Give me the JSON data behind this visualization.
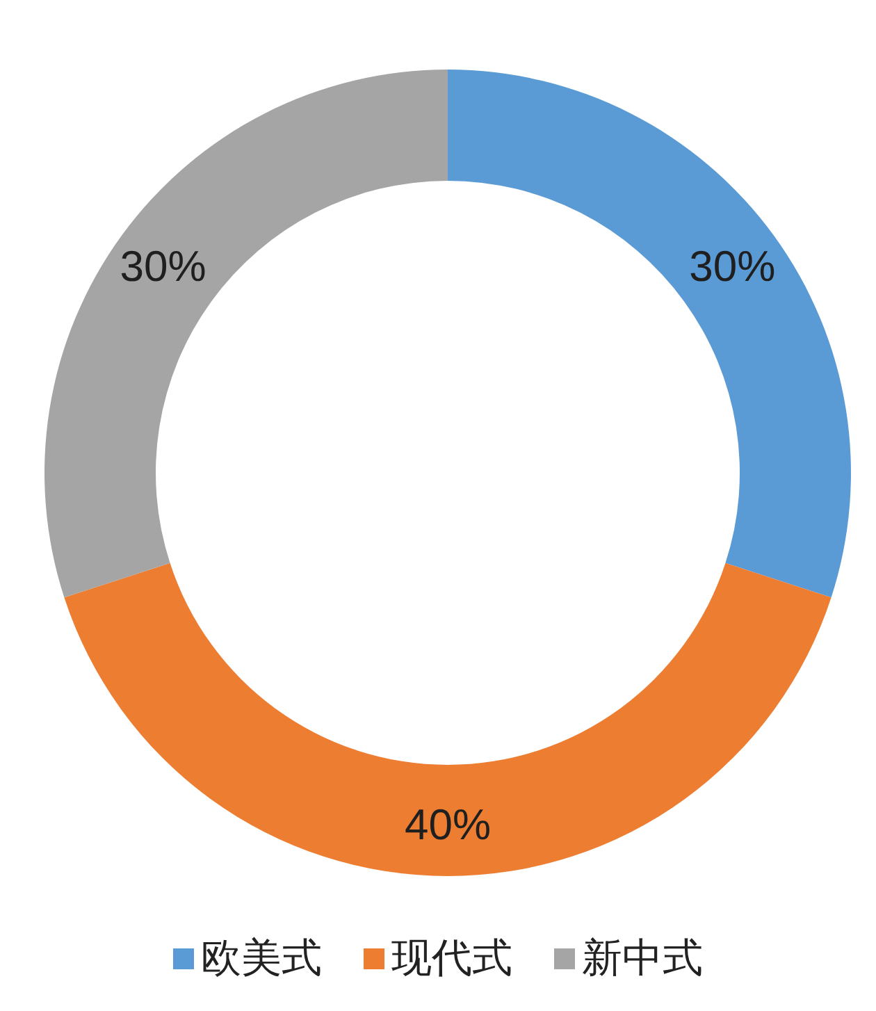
{
  "chart_data": {
    "type": "donut",
    "categories": [
      "欧美式",
      "现代式",
      "新中式"
    ],
    "values": [
      30,
      40,
      30
    ],
    "colors": [
      "#5b9bd5",
      "#ed7d31",
      "#a5a5a5"
    ],
    "value_labels": [
      "30%",
      "40%",
      "30%"
    ],
    "legend": "bottom"
  }
}
